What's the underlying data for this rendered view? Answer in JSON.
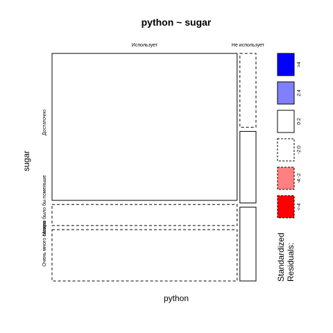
{
  "chart_data": {
    "type": "mosaic",
    "title": "python ~ sugar",
    "xlabel": "python",
    "ylabel": "sugar",
    "x_categories": [
      "Использует",
      "Не использует"
    ],
    "y_categories": [
      "Достаточно",
      "Можно было бы поменьше",
      "Очень много сахара"
    ],
    "x_proportions": [
      0.92,
      0.08
    ],
    "cells": [
      {
        "x": "Использует",
        "y": "Достаточно",
        "proportion": 0.63,
        "residual_class": "0:2"
      },
      {
        "x": "Использует",
        "y": "Можно было бы поменьше",
        "proportion": 0.09,
        "residual_class": "-2:0"
      },
      {
        "x": "Использует",
        "y": "Очень много сахара",
        "proportion": 0.22,
        "residual_class": "-2:0"
      },
      {
        "x": "Не использует",
        "y": "Достаточно",
        "proportion": 0.33,
        "residual_class": "-2:0"
      },
      {
        "x": "Не использует",
        "y": "Можно было бы поменьше",
        "proportion": 0.32,
        "residual_class": "0:2"
      },
      {
        "x": "Не использует",
        "y": "Очень много сахара",
        "proportion": 0.33,
        "residual_class": "0:2"
      }
    ],
    "legend": {
      "title": "Standardized Residuals:",
      "placement": "right",
      "entries": [
        {
          "label": ">4",
          "color": "#0000ff",
          "border": "solid"
        },
        {
          "label": "2:4",
          "color": "#8080ff",
          "border": "solid"
        },
        {
          "label": "0:2",
          "color": "#ffffff",
          "border": "solid"
        },
        {
          "label": "-2:0",
          "color": "#ffffff",
          "border": "dashed"
        },
        {
          "label": "-4:-2",
          "color": "#ff8080",
          "border": "dashed"
        },
        {
          "label": "<-4",
          "color": "#ff0000",
          "border": "dashed"
        }
      ]
    }
  }
}
